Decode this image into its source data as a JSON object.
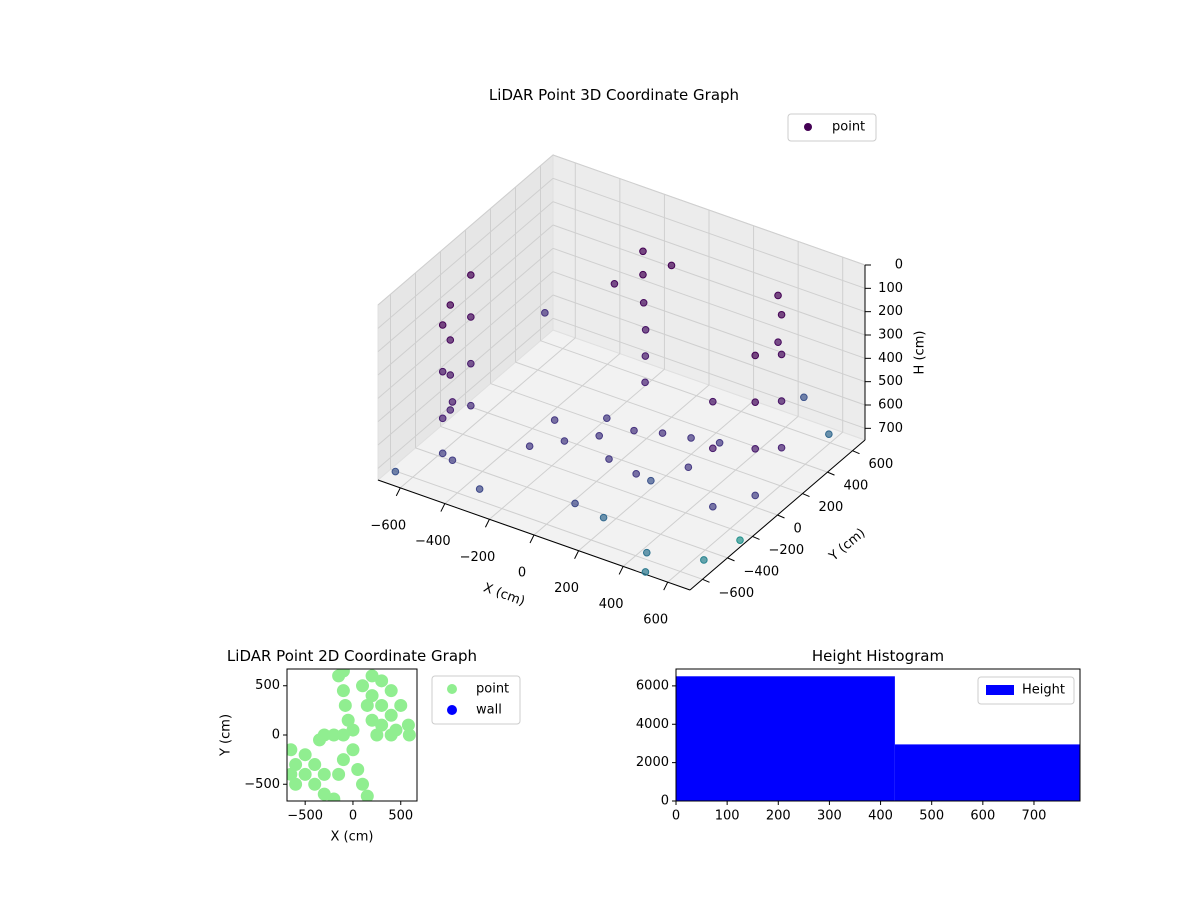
{
  "chart_data": [
    {
      "type": "scatter3d",
      "title": "LiDAR Point 3D Coordinate Graph",
      "xlabel": "X (cm)",
      "ylabel": "Y (cm)",
      "zlabel": "H (cm)",
      "xlim": [
        -700,
        700
      ],
      "ylim": [
        -700,
        700
      ],
      "zlim": [
        0,
        750
      ],
      "z_inverted": true,
      "grid": true,
      "legend": "upper right",
      "xticks": [
        {
          "value": -600,
          "label": "−600"
        },
        {
          "value": -400,
          "label": "−400"
        },
        {
          "value": -200,
          "label": "−200"
        },
        0,
        200,
        400,
        600
      ],
      "yticks": [
        {
          "value": -600,
          "label": "−600"
        },
        {
          "value": -400,
          "label": "−400"
        },
        {
          "value": -200,
          "label": "−200"
        },
        0,
        200,
        400,
        600
      ],
      "zticks": [
        0,
        100,
        200,
        300,
        400,
        500,
        600,
        700
      ],
      "series": [
        {
          "name": "point",
          "color": "#440154",
          "x": [
            -600,
            -600,
            -600,
            -600,
            -550,
            -550,
            -550,
            -550,
            -620,
            -620,
            -620,
            -620,
            -450,
            -450,
            550,
            550,
            550,
            550,
            600,
            600,
            600,
            600,
            550,
            550,
            550,
            450,
            450,
            -300,
            -200,
            -100,
            0,
            100,
            200,
            300,
            -300,
            300,
            0,
            -150,
            150,
            -100,
            -100,
            -80,
            -60,
            -50,
            -40,
            0,
            -200,
            -650,
            -300,
            200,
            450,
            500,
            650,
            700,
            650,
            650,
            300,
            100,
            -400
          ],
          "y": [
            -300,
            -300,
            -300,
            -300,
            -450,
            -450,
            -450,
            -450,
            -100,
            -100,
            -100,
            -100,
            -550,
            -550,
            300,
            300,
            300,
            300,
            0,
            0,
            0,
            0,
            -250,
            -250,
            -250,
            450,
            450,
            -200,
            -100,
            0,
            100,
            150,
            200,
            250,
            0,
            0,
            -100,
            150,
            -150,
            350,
            350,
            320,
            300,
            280,
            260,
            400,
            300,
            -650,
            -600,
            -500,
            -600,
            -700,
            -500,
            -300,
            300,
            500,
            -300,
            -550,
            100
          ],
          "z": [
            150,
            300,
            450,
            600,
            150,
            350,
            550,
            700,
            120,
            300,
            500,
            680,
            400,
            650,
            80,
            250,
            450,
            650,
            100,
            300,
            500,
            700,
            200,
            400,
            650,
            100,
            300,
            700,
            690,
            680,
            670,
            670,
            680,
            690,
            680,
            680,
            700,
            690,
            690,
            50,
            150,
            250,
            350,
            450,
            550,
            100,
            200,
            720,
            700,
            700,
            720,
            740,
            730,
            720,
            400,
            650,
            600,
            650,
            300
          ],
          "colors": [
            "#440154",
            "#46085c",
            "#471365",
            "#482173",
            "#440154",
            "#471365",
            "#482173",
            "#433e85",
            "#440154",
            "#46085c",
            "#481a6c",
            "#472d7b",
            "#481a6c",
            "#433e85",
            "#440154",
            "#46085c",
            "#471365",
            "#482173",
            "#440154",
            "#46085c",
            "#481a6c",
            "#433e85",
            "#471365",
            "#481a6c",
            "#433e85",
            "#440154",
            "#46085c",
            "#443983",
            "#443983",
            "#453882",
            "#46327e",
            "#46327e",
            "#453882",
            "#443983",
            "#453882",
            "#453882",
            "#443983",
            "#443983",
            "#443983",
            "#440154",
            "#440154",
            "#46085c",
            "#471365",
            "#481a6c",
            "#482173",
            "#440154",
            "#46085c",
            "#3b528b",
            "#3e4989",
            "#31688e",
            "#2c728e",
            "#2a788e",
            "#26828e",
            "#21918c",
            "#3b528b",
            "#31688e",
            "#3b528b",
            "#3e4989",
            "#46327e"
          ]
        }
      ]
    },
    {
      "type": "scatter",
      "title": "LiDAR Point 2D Coordinate Graph",
      "xlabel": "X (cm)",
      "ylabel": "Y (cm)",
      "xlim": [
        -690,
        670
      ],
      "ylim": [
        -670,
        670
      ],
      "legend": "outside right",
      "xticks": [
        {
          "value": -500,
          "label": "−500"
        },
        0,
        500
      ],
      "yticks": [
        {
          "value": -500,
          "label": "−500"
        },
        0,
        500
      ],
      "series": [
        {
          "name": "point",
          "color": "#90ee90",
          "x": [
            200,
            300,
            400,
            500,
            580,
            590,
            300,
            400,
            200,
            150,
            300,
            450,
            200,
            100,
            250,
            400,
            -150,
            -100,
            -80,
            -50,
            0,
            -100,
            -300,
            -200,
            -100,
            -350,
            -650,
            -600,
            -500,
            -400,
            -300,
            -200,
            -500,
            -400,
            -300,
            -600,
            -650,
            -150,
            -100,
            0,
            100,
            150,
            50
          ],
          "y": [
            600,
            550,
            450,
            300,
            100,
            0,
            300,
            200,
            400,
            300,
            100,
            50,
            150,
            500,
            0,
            0,
            600,
            450,
            300,
            150,
            50,
            650,
            0,
            0,
            0,
            -50,
            -150,
            -300,
            -400,
            -500,
            -600,
            -650,
            -200,
            -300,
            -400,
            -500,
            -400,
            -400,
            -250,
            -150,
            -500,
            -620,
            -350
          ]
        },
        {
          "name": "wall",
          "color": "#0000ff",
          "x": [],
          "y": []
        }
      ]
    },
    {
      "type": "histogram",
      "title": "Height Histogram",
      "bins": [
        0,
        428,
        790
      ],
      "xlim": [
        0,
        790
      ],
      "ylim": [
        0,
        6880
      ],
      "legend": "upper right",
      "xticks": [
        0,
        100,
        200,
        300,
        400,
        500,
        600,
        700
      ],
      "yticks": [
        0,
        2000,
        4000,
        6000
      ],
      "series": [
        {
          "name": "Height",
          "color": "#0000ff",
          "values": [
            6500,
            2950
          ]
        }
      ]
    }
  ]
}
